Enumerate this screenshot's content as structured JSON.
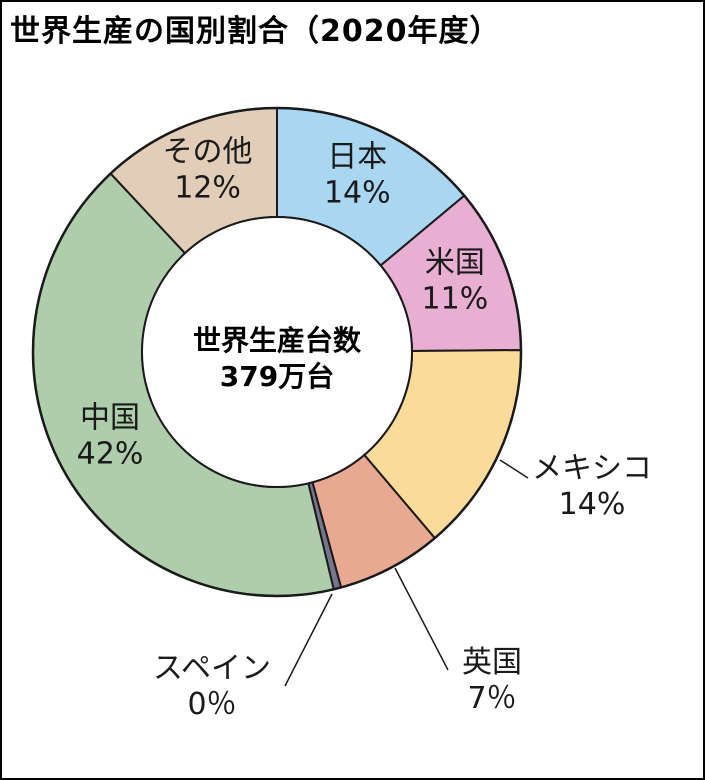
{
  "chart_data": {
    "type": "pie",
    "title": "世界生産の国別割合（2020年度）",
    "center_label": [
      "世界生産台数",
      "379万台"
    ],
    "slices": [
      {
        "label": "日本",
        "value_text": "14%",
        "value": 14,
        "color": "#a9d7f2"
      },
      {
        "label": "米国",
        "value_text": "11%",
        "value": 11,
        "color": "#e8afd3"
      },
      {
        "label": "メキシコ",
        "value_text": "14%",
        "value": 14,
        "color": "#fadb9a"
      },
      {
        "label": "英国",
        "value_text": "7％",
        "value": 7,
        "color": "#e9a891"
      },
      {
        "label": "スペイン",
        "value_text": "0％",
        "value": 0.5,
        "color": "#767590"
      },
      {
        "label": "中国",
        "value_text": "42%",
        "value": 42,
        "color": "#aecdaa"
      },
      {
        "label": "その他",
        "value_text": "12%",
        "value": 12,
        "color": "#e2cdb9"
      }
    ]
  }
}
